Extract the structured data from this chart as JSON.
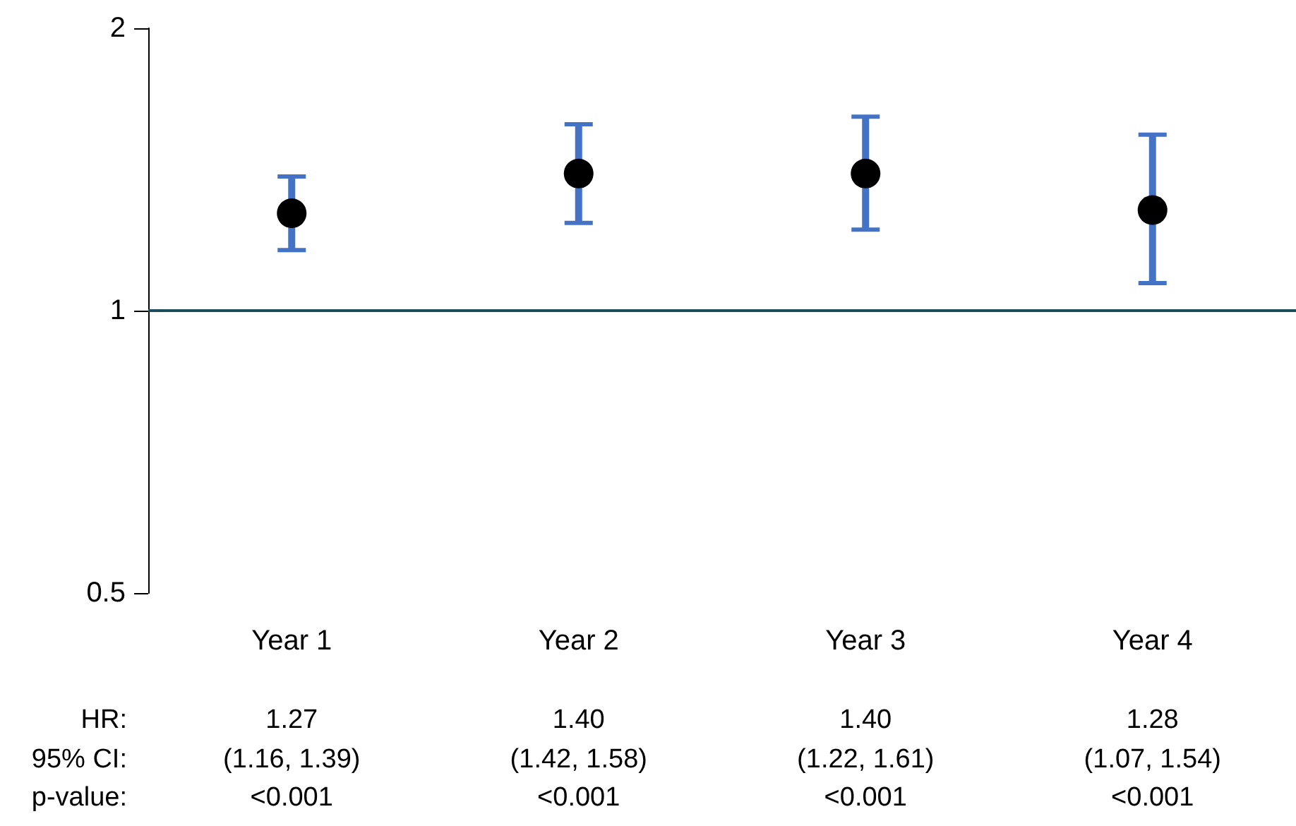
{
  "chart_data": {
    "type": "scatter",
    "categories": [
      "Year 1",
      "Year 2",
      "Year 3",
      "Year 4"
    ],
    "values": [
      1.27,
      1.4,
      1.4,
      1.28
    ],
    "errors": [
      [
        1.16,
        1.39
      ],
      [
        1.24,
        1.58
      ],
      [
        1.22,
        1.61
      ],
      [
        1.07,
        1.54
      ]
    ],
    "value_labels": [
      "1.27",
      "1.40",
      "1.40",
      "1.28"
    ],
    "color": "#000000",
    "marker": "circle",
    "log": true,
    "ylim": [
      0.5,
      2
    ],
    "yticks": [
      0.5,
      1,
      2
    ],
    "grid": false,
    "ref_lines": [
      {
        "axis": "y",
        "value": 1,
        "color": "#1d4d5b"
      }
    ],
    "annotations": [
      "HR:",
      "95% CI:",
      "p-value:",
      "(1.16, 1.39)",
      "(1.42, 1.58)",
      "(1.22, 1.61)",
      "(1.07, 1.54)",
      "<0.001",
      "<0.001",
      "<0.001",
      "<0.001"
    ]
  }
}
